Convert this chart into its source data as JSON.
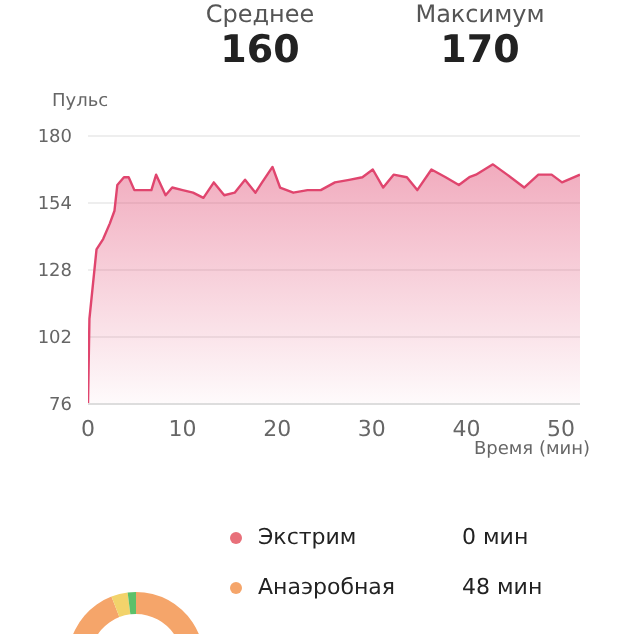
{
  "chart_data": [
    {
      "type": "area",
      "annotations": [
        "Среднее",
        "160",
        "Максимум",
        "170"
      ],
      "ylabel": "Пульс",
      "xlabel": "Время (мин)",
      "x": [
        0,
        0.15,
        0.9,
        1.6,
        2.3,
        2.8,
        3.1,
        3.8,
        4.3,
        4.9,
        6.7,
        7.2,
        8.2,
        8.9,
        10,
        11.1,
        12.2,
        13.3,
        14.4,
        15.5,
        16.6,
        17.7,
        18.4,
        19.5,
        20.3,
        21.7,
        23.2,
        24.6,
        26.1,
        27.6,
        29,
        30.1,
        31.2,
        32.3,
        33.7,
        34.8,
        36.3,
        37.8,
        39.2,
        40.3,
        41,
        42.8,
        44.3,
        46.1,
        47.6,
        49,
        50.1,
        52
      ],
      "series": [
        {
          "color": "#e0456e",
          "values": [
            76,
            109,
            136,
            140,
            146,
            151,
            161,
            164,
            164,
            159,
            159,
            165,
            157,
            160,
            159,
            158,
            156,
            162,
            157,
            158,
            163,
            158,
            162,
            168,
            160,
            158,
            159,
            159,
            162,
            163,
            164,
            167,
            160,
            165,
            164,
            159,
            167,
            164,
            161,
            164,
            165,
            169,
            165,
            160,
            165,
            165,
            162,
            165
          ]
        }
      ],
      "xlim": [
        0,
        52
      ],
      "xticks": [
        0,
        10,
        20,
        30,
        40,
        50
      ],
      "ylim": [
        76,
        180
      ],
      "yticks": [
        76,
        102,
        128,
        154,
        180
      ],
      "grid": "y"
    },
    {
      "type": "donut",
      "categories": [
        "Экстрим",
        "Анаэробная",
        null,
        null
      ],
      "values": [
        0,
        48,
        2,
        1
      ],
      "colors": [
        "#e8707a",
        "#f5a56a",
        "#f2d36b",
        "#5cc06a"
      ],
      "value_labels": [
        "0 мин",
        "48 мин",
        null,
        null
      ],
      "legend": "right"
    }
  ]
}
